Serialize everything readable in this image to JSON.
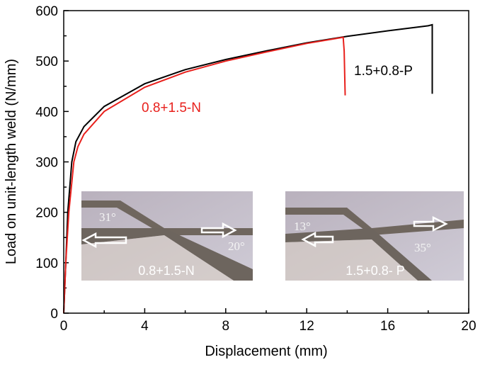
{
  "chart_data": {
    "type": "line",
    "x_label": "Displacement (mm)",
    "y_label": "Load on unit-length weld (N/mm)",
    "xlim": [
      0,
      20
    ],
    "xticks": [
      0,
      4,
      8,
      12,
      16,
      20
    ],
    "ylim": [
      0,
      600
    ],
    "yticks": [
      0,
      100,
      200,
      300,
      400,
      500,
      600
    ],
    "grid": false,
    "series": [
      {
        "name": "1.5+0.8-P",
        "color": "#000000",
        "x": [
          0,
          0.1,
          0.2,
          0.4,
          0.6,
          1,
          2,
          4,
          6,
          8,
          10,
          12,
          14,
          16,
          18,
          18.2,
          18.2
        ],
        "values": [
          0,
          100,
          200,
          300,
          340,
          370,
          410,
          455,
          483,
          503,
          520,
          536,
          549,
          560,
          570,
          572,
          435
        ]
      },
      {
        "name": "0.8+1.5-N",
        "color": "#e8201c",
        "x": [
          0,
          0.1,
          0.25,
          0.5,
          0.7,
          1,
          2,
          4,
          6,
          8,
          10,
          12,
          13.8,
          13.85,
          13.9
        ],
        "values": [
          0,
          100,
          200,
          300,
          330,
          355,
          400,
          448,
          478,
          500,
          518,
          535,
          547,
          520,
          432
        ]
      }
    ],
    "insets": [
      {
        "label": "0.8+1.5-N",
        "angles": [
          "31°",
          "20°"
        ]
      },
      {
        "label": "1.5+0.8- P",
        "angles": [
          "13°",
          "35°"
        ]
      }
    ]
  }
}
